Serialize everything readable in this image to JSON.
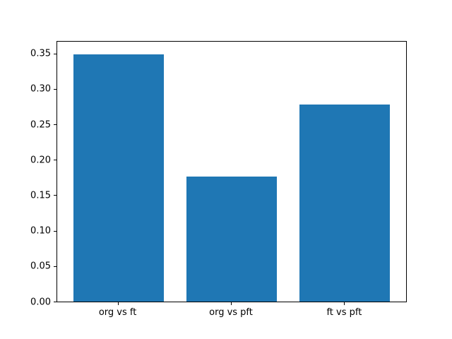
{
  "figure": {
    "background": "#ffffff",
    "bar_color": "#1f77b4",
    "axis_color": "#000000",
    "tick_label_color": "#000000"
  },
  "chart_data": {
    "type": "bar",
    "categories": [
      "org vs ft",
      "org vs pft",
      "ft vs pft"
    ],
    "values": [
      0.349,
      0.176,
      0.278
    ],
    "title": "",
    "xlabel": "",
    "ylabel": "",
    "ylim": [
      0,
      0.3665
    ],
    "xlim": [
      -0.54,
      2.54
    ],
    "bar_width": 0.8,
    "yticks": [
      0.0,
      0.05,
      0.1,
      0.15,
      0.2,
      0.25,
      0.3,
      0.35
    ],
    "ytick_labels": [
      "0.00",
      "0.05",
      "0.10",
      "0.15",
      "0.20",
      "0.25",
      "0.30",
      "0.35"
    ],
    "grid": false,
    "legend": null
  }
}
